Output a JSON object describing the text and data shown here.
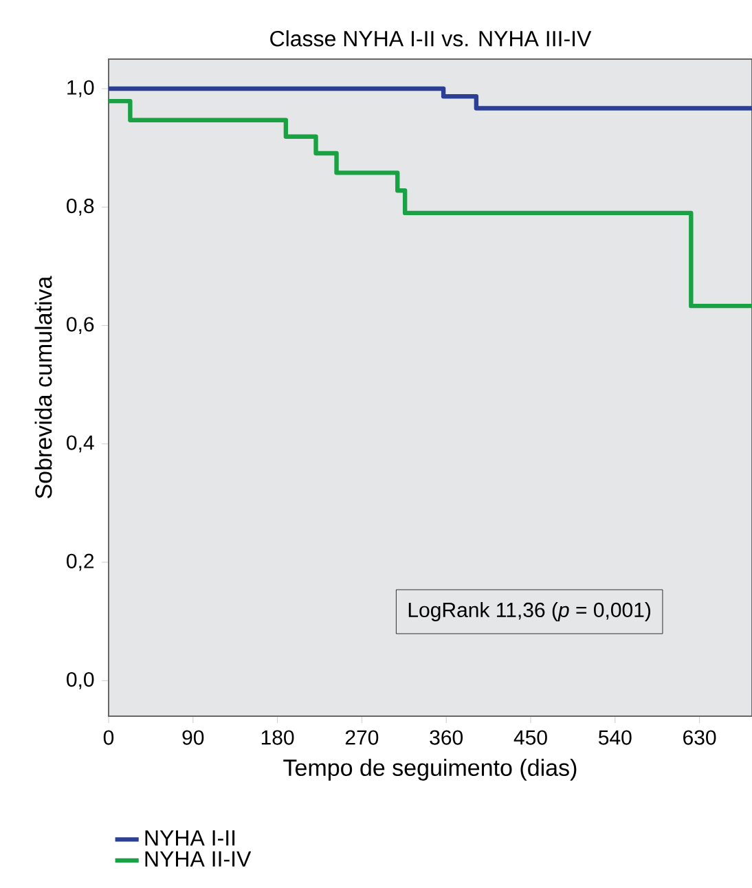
{
  "chart_data": {
    "type": "step",
    "title": "Classe NYHA I-II vs. NYHA III-IV",
    "xlabel": "Tempo de seguimento (dias)",
    "ylabel": "Sobrevida cumulativa",
    "xlim": [
      0,
      686
    ],
    "ylim": [
      -0.06,
      1.05
    ],
    "xticks": [
      0,
      90,
      180,
      270,
      360,
      450,
      540,
      630
    ],
    "yticks": [
      {
        "value": 0,
        "label": "0,0"
      },
      {
        "value": 0.2,
        "label": "0,2"
      },
      {
        "value": 0.4,
        "label": "0,4"
      },
      {
        "value": 0.6,
        "label": "0,6"
      },
      {
        "value": 0.8,
        "label": "0,8"
      },
      {
        "value": 1.0,
        "label": "1,0"
      }
    ],
    "series": [
      {
        "name": "NYHA I-II",
        "color": "#2b3f94",
        "x": [
          0,
          357,
          392,
          686
        ],
        "values": [
          1.0,
          0.987,
          0.967,
          0.967
        ]
      },
      {
        "name": "NYHA II-IV",
        "color": "#1aa144",
        "x": [
          0,
          23,
          189,
          221,
          243,
          308,
          316,
          621,
          686
        ],
        "values": [
          0.979,
          0.947,
          0.919,
          0.891,
          0.858,
          0.828,
          0.79,
          0.633,
          0.633
        ]
      }
    ],
    "annotations": [
      "LogRank 11,36 (*p* = 0,001)"
    ],
    "legend": "bottom left",
    "grid": false,
    "marker": "none",
    "line_style": "solid"
  }
}
